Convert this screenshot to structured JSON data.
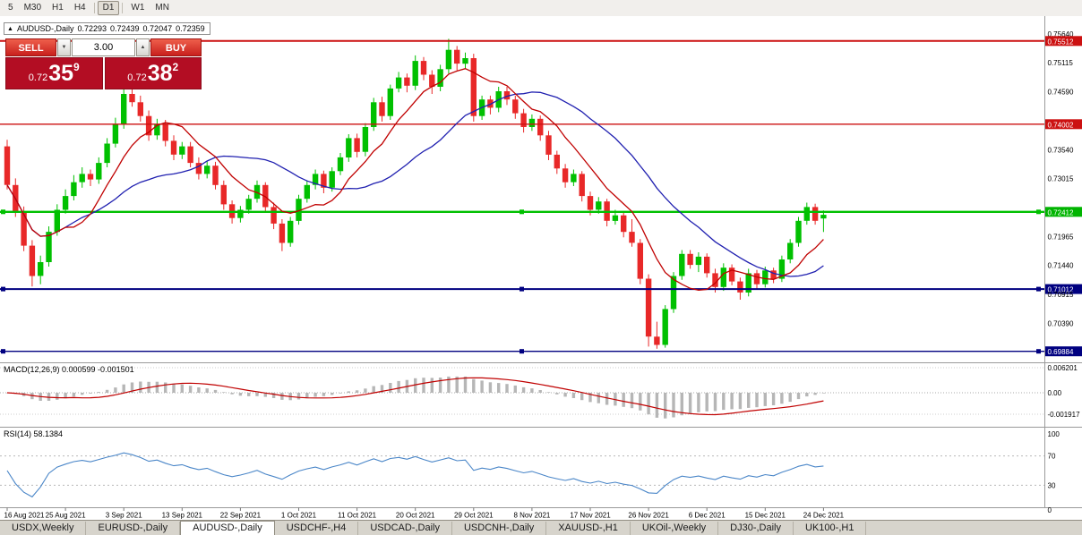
{
  "toolbar": {
    "timeframes": [
      "5",
      "M30",
      "H1",
      "H4",
      "D1",
      "W1",
      "MN"
    ],
    "active": "D1"
  },
  "icons": {
    "title_marker": "▲",
    "spin_down": "▼",
    "spin_up": "▲"
  },
  "chart_header": {
    "symbol": "AUDUSD-,Daily",
    "open": "0.72293",
    "high": "0.72439",
    "low": "0.72047",
    "close": "0.72359"
  },
  "trade_panel": {
    "sell_label": "SELL",
    "buy_label": "BUY",
    "volume": "3.00",
    "sell_price": {
      "prefix": "0.72",
      "big": "35",
      "sup": "9"
    },
    "buy_price": {
      "prefix": "0.72",
      "big": "38",
      "sup": "2"
    }
  },
  "panels": {
    "macd_label": "MACD(12,26,9) 0.000599 -0.001501",
    "rsi_label": "RSI(14) 58.1384"
  },
  "colors": {
    "buy_sell_button": "#d8332c",
    "price_box": "#b30d23",
    "resistance_line": "#cc1111",
    "support_green_line": "#00c000",
    "support_navy_line": "#000080"
  },
  "tabs": {
    "active_index": 2,
    "items": [
      "USDX,Weekly",
      "EURUSD-,Daily",
      "AUDUSD-,Daily",
      "USDCHF-,H4",
      "USDCAD-,Daily",
      "USDCNH-,Daily",
      "XAUUSD-,H1",
      "UKOil-,Weekly",
      "DJ30-,Daily",
      "UK100-,H1"
    ]
  },
  "chart_data": {
    "type": "candlestick",
    "symbol": "AUDUSD-",
    "timeframe": "Daily",
    "ylim": [
      0.697,
      0.758
    ],
    "up_color": "#00c000",
    "down_color": "#e82828",
    "ma_fast": {
      "period": 8,
      "color": "#c00000"
    },
    "ma_slow": {
      "period": 21,
      "color": "#2020b0"
    },
    "x_label_step": 7,
    "x_labels": [
      "16 Aug 2021",
      "25 Aug 2021",
      "3 Sep 2021",
      "13 Sep 2021",
      "22 Sep 2021",
      "1 Oct 2021",
      "11 Oct 2021",
      "20 Oct 2021",
      "29 Oct 2021",
      "8 Nov 2021",
      "17 Nov 2021",
      "26 Nov 2021",
      "6 Dec 2021",
      "15 Dec 2021",
      "24 Dec 2021"
    ],
    "candles": [
      [
        0.736,
        0.7372,
        0.7282,
        0.729
      ],
      [
        0.729,
        0.7302,
        0.7232,
        0.724
      ],
      [
        0.724,
        0.7251,
        0.717,
        0.718
      ],
      [
        0.718,
        0.719,
        0.7106,
        0.7125
      ],
      [
        0.7125,
        0.7162,
        0.711,
        0.715
      ],
      [
        0.715,
        0.7215,
        0.7142,
        0.7205
      ],
      [
        0.7205,
        0.7255,
        0.7198,
        0.7245
      ],
      [
        0.7245,
        0.7282,
        0.7238,
        0.727
      ],
      [
        0.727,
        0.7308,
        0.7262,
        0.7295
      ],
      [
        0.7295,
        0.7322,
        0.7285,
        0.731
      ],
      [
        0.731,
        0.7318,
        0.7288,
        0.73
      ],
      [
        0.73,
        0.734,
        0.7292,
        0.733
      ],
      [
        0.733,
        0.7375,
        0.7322,
        0.7365
      ],
      [
        0.7365,
        0.7412,
        0.7358,
        0.74
      ],
      [
        0.74,
        0.7478,
        0.7392,
        0.7455
      ],
      [
        0.7455,
        0.747,
        0.7432,
        0.744
      ],
      [
        0.744,
        0.7452,
        0.7405,
        0.7415
      ],
      [
        0.7415,
        0.7425,
        0.737,
        0.738
      ],
      [
        0.738,
        0.741,
        0.7372,
        0.74
      ],
      [
        0.74,
        0.7408,
        0.736,
        0.737
      ],
      [
        0.737,
        0.738,
        0.7335,
        0.7345
      ],
      [
        0.7345,
        0.7368,
        0.7337,
        0.736
      ],
      [
        0.736,
        0.7368,
        0.7322,
        0.733
      ],
      [
        0.733,
        0.734,
        0.73,
        0.731
      ],
      [
        0.731,
        0.7333,
        0.7302,
        0.7325
      ],
      [
        0.7325,
        0.7332,
        0.7282,
        0.729
      ],
      [
        0.729,
        0.7298,
        0.7245,
        0.7255
      ],
      [
        0.7255,
        0.7262,
        0.722,
        0.723
      ],
      [
        0.723,
        0.7252,
        0.7222,
        0.7245
      ],
      [
        0.7245,
        0.7272,
        0.7238,
        0.7265
      ],
      [
        0.7265,
        0.7298,
        0.7258,
        0.729
      ],
      [
        0.729,
        0.7295,
        0.7242,
        0.725
      ],
      [
        0.725,
        0.7258,
        0.721,
        0.722
      ],
      [
        0.722,
        0.7228,
        0.717,
        0.7185
      ],
      [
        0.7185,
        0.7232,
        0.7178,
        0.7225
      ],
      [
        0.7225,
        0.7272,
        0.7218,
        0.7265
      ],
      [
        0.7265,
        0.7298,
        0.7258,
        0.729
      ],
      [
        0.729,
        0.7318,
        0.7282,
        0.731
      ],
      [
        0.731,
        0.7316,
        0.7275,
        0.7285
      ],
      [
        0.7285,
        0.7322,
        0.7278,
        0.7315
      ],
      [
        0.7315,
        0.7348,
        0.7308,
        0.734
      ],
      [
        0.734,
        0.7382,
        0.7332,
        0.7375
      ],
      [
        0.7375,
        0.7383,
        0.734,
        0.735
      ],
      [
        0.735,
        0.7402,
        0.7342,
        0.7395
      ],
      [
        0.7395,
        0.7448,
        0.7388,
        0.744
      ],
      [
        0.744,
        0.745,
        0.7405,
        0.7415
      ],
      [
        0.7415,
        0.7472,
        0.7408,
        0.7465
      ],
      [
        0.7465,
        0.7495,
        0.7458,
        0.7485
      ],
      [
        0.7485,
        0.7492,
        0.7458,
        0.747
      ],
      [
        0.747,
        0.7525,
        0.7462,
        0.7515
      ],
      [
        0.7515,
        0.7522,
        0.748,
        0.749
      ],
      [
        0.749,
        0.7498,
        0.7455,
        0.7468
      ],
      [
        0.7468,
        0.7508,
        0.746,
        0.75
      ],
      [
        0.75,
        0.7555,
        0.7492,
        0.7535
      ],
      [
        0.7535,
        0.7542,
        0.7498,
        0.751
      ],
      [
        0.751,
        0.753,
        0.75,
        0.752
      ],
      [
        0.752,
        0.7528,
        0.7405,
        0.7415
      ],
      [
        0.7415,
        0.7452,
        0.7408,
        0.7445
      ],
      [
        0.7445,
        0.7452,
        0.7418,
        0.743
      ],
      [
        0.743,
        0.7468,
        0.7422,
        0.746
      ],
      [
        0.746,
        0.7468,
        0.7435,
        0.7445
      ],
      [
        0.7445,
        0.7452,
        0.741,
        0.742
      ],
      [
        0.742,
        0.7428,
        0.7385,
        0.7395
      ],
      [
        0.7395,
        0.7418,
        0.7388,
        0.741
      ],
      [
        0.741,
        0.7416,
        0.737,
        0.738
      ],
      [
        0.738,
        0.7388,
        0.7335,
        0.7345
      ],
      [
        0.7345,
        0.7352,
        0.731,
        0.732
      ],
      [
        0.732,
        0.7328,
        0.7285,
        0.7295
      ],
      [
        0.7295,
        0.7318,
        0.7288,
        0.731
      ],
      [
        0.731,
        0.7315,
        0.726,
        0.727
      ],
      [
        0.727,
        0.7278,
        0.7235,
        0.7245
      ],
      [
        0.7245,
        0.7268,
        0.7238,
        0.726
      ],
      [
        0.726,
        0.7265,
        0.7215,
        0.7225
      ],
      [
        0.7225,
        0.7245,
        0.7218,
        0.7235
      ],
      [
        0.7235,
        0.724,
        0.7195,
        0.7205
      ],
      [
        0.7205,
        0.7228,
        0.7178,
        0.7185
      ],
      [
        0.7185,
        0.7192,
        0.711,
        0.712
      ],
      [
        0.712,
        0.7128,
        0.6997,
        0.7015
      ],
      [
        0.7015,
        0.7042,
        0.6993,
        0.7
      ],
      [
        0.7,
        0.7072,
        0.6995,
        0.7065
      ],
      [
        0.7065,
        0.7132,
        0.7058,
        0.7125
      ],
      [
        0.7125,
        0.7172,
        0.7118,
        0.7165
      ],
      [
        0.7165,
        0.7172,
        0.7138,
        0.7145
      ],
      [
        0.7145,
        0.7168,
        0.7132,
        0.716
      ],
      [
        0.716,
        0.7166,
        0.7122,
        0.713
      ],
      [
        0.713,
        0.7138,
        0.7095,
        0.7105
      ],
      [
        0.7105,
        0.7148,
        0.7098,
        0.714
      ],
      [
        0.714,
        0.7146,
        0.7108,
        0.7115
      ],
      [
        0.7115,
        0.7122,
        0.7082,
        0.7095
      ],
      [
        0.7095,
        0.7138,
        0.7088,
        0.713
      ],
      [
        0.713,
        0.7136,
        0.7102,
        0.711
      ],
      [
        0.711,
        0.7142,
        0.7104,
        0.7135
      ],
      [
        0.7135,
        0.714,
        0.7112,
        0.712
      ],
      [
        0.712,
        0.7162,
        0.7114,
        0.7155
      ],
      [
        0.7155,
        0.7192,
        0.7148,
        0.7185
      ],
      [
        0.7185,
        0.7232,
        0.7178,
        0.7225
      ],
      [
        0.7225,
        0.7258,
        0.7218,
        0.725
      ],
      [
        0.725,
        0.7256,
        0.7218,
        0.7225
      ],
      [
        0.72293,
        0.72439,
        0.72047,
        0.72359
      ]
    ],
    "hlines": [
      {
        "price": 0.75512,
        "color": "#cc1111",
        "width": 2,
        "selected": false
      },
      {
        "price": 0.74002,
        "color": "#cc1111",
        "width": 1.4,
        "selected": false
      },
      {
        "price": 0.72412,
        "color": "#00c000",
        "width": 2.4,
        "selected": true
      },
      {
        "price": 0.71012,
        "color": "#000080",
        "width": 2,
        "selected": true
      },
      {
        "price": 0.69884,
        "color": "#000080",
        "width": 1.4,
        "selected": true
      }
    ],
    "price_axis": [
      {
        "label": "0.75640",
        "price": 0.7564
      },
      {
        "label": "0.75512",
        "price": 0.75512,
        "bg": "#cc1111"
      },
      {
        "label": "0.75115",
        "price": 0.75115
      },
      {
        "label": "0.74590",
        "price": 0.7459
      },
      {
        "label": "0.74002",
        "price": 0.74002,
        "bg": "#cc1111"
      },
      {
        "label": "0.73540",
        "price": 0.7354
      },
      {
        "label": "0.73015",
        "price": 0.73015
      },
      {
        "label": "0.72412",
        "price": 0.72412,
        "bg": "#00b400"
      },
      {
        "label": "0.71965",
        "price": 0.71965
      },
      {
        "label": "0.71440",
        "price": 0.7144
      },
      {
        "label": "0.71012",
        "price": 0.71012,
        "bg": "#000080"
      },
      {
        "label": "0.70915",
        "price": 0.70915
      },
      {
        "label": "0.70390",
        "price": 0.7039
      },
      {
        "label": "0.69884",
        "price": 0.69884,
        "bg": "#000080"
      }
    ],
    "macd": {
      "hist_color": "#b6b6b6",
      "signal_color": "#c00000",
      "axis_labels": [
        "0.006201",
        "0.00",
        "-0.001917"
      ]
    },
    "rsi": {
      "color": "#4a86c8",
      "levels": [
        70,
        30
      ],
      "axis_labels": [
        "100",
        "70",
        "30",
        "0"
      ],
      "axis_values": [
        100,
        70,
        30,
        0
      ]
    }
  }
}
